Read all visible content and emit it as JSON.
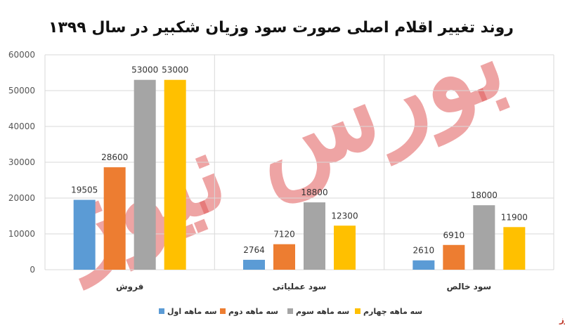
{
  "chart_data": {
    "type": "bar",
    "title": "روند تغییر اقلام اصلی صورت سود وزیان شکبیر در سال ۱۳۹۹",
    "categories": [
      "فروش",
      "سود عملیاتی",
      "سود خالص"
    ],
    "series": [
      {
        "name": "سه ماهه اول",
        "color": "#5b9bd5",
        "values": [
          19505,
          2764,
          2610
        ]
      },
      {
        "name": "سه ماهه دوم",
        "color": "#ed7d31",
        "values": [
          28600,
          7120,
          6910
        ]
      },
      {
        "name": "سه ماهه سوم",
        "color": "#a5a5a5",
        "values": [
          53000,
          18800,
          18000
        ]
      },
      {
        "name": "سه ماهه چهارم",
        "color": "#ffc000",
        "values": [
          53000,
          12300,
          11900
        ]
      }
    ],
    "ylim": [
      0,
      60000
    ],
    "yticks": [
      0,
      10000,
      20000,
      30000,
      40000,
      50000,
      60000
    ],
    "grid": true,
    "legend_position": "bottom"
  },
  "watermark": {
    "text": "بورس نیوز",
    "color": "#e05a5a"
  },
  "brand_label": "بورس نیوز",
  "colors": {
    "gridline": "#d9d9d9",
    "background": "#ffffff"
  }
}
